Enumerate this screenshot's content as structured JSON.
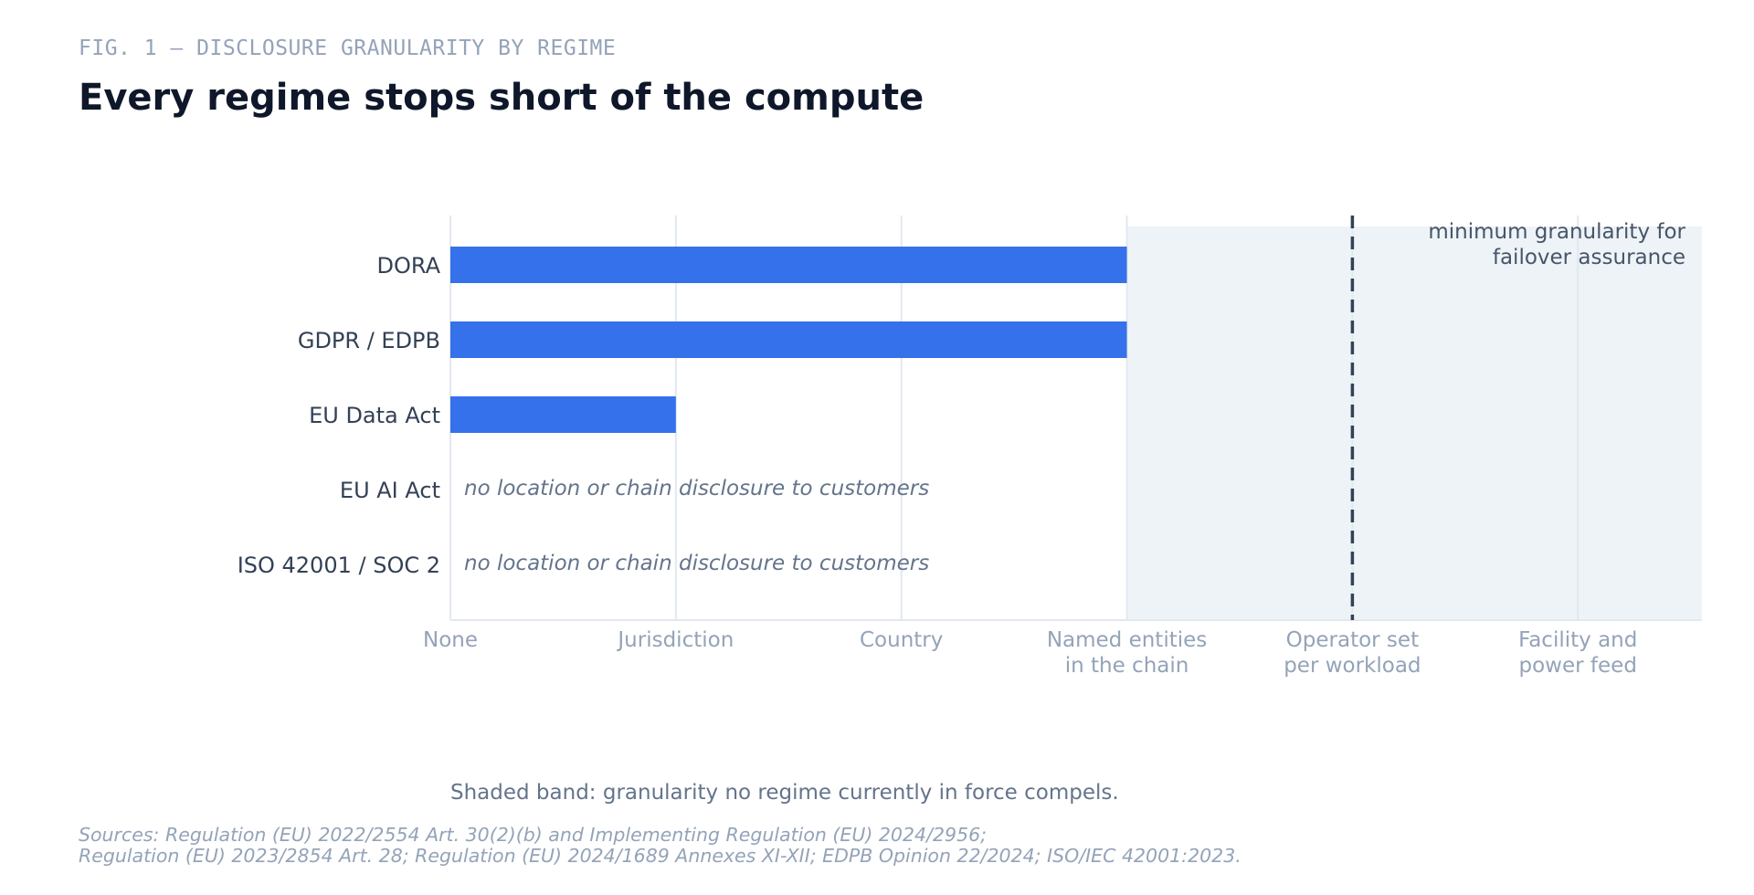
{
  "figure_label": "FIG. 1 — DISCLOSURE GRANULARITY BY REGIME",
  "chart_data": {
    "type": "bar",
    "orientation": "horizontal",
    "title": "Every regime stops short of the compute",
    "x_levels": [
      [
        "None"
      ],
      [
        "Jurisdiction"
      ],
      [
        "Country"
      ],
      [
        "Named entities",
        "in the chain"
      ],
      [
        "Operator set",
        "per workload"
      ],
      [
        "Facility and",
        "power feed"
      ]
    ],
    "xlim": [
      0,
      5.55
    ],
    "categories": [
      "DORA",
      "GDPR / EDPB",
      "EU Data Act",
      "EU AI Act",
      "ISO 42001 / SOC 2"
    ],
    "values": [
      3,
      3,
      1,
      0,
      0
    ],
    "bar_notes": [
      "",
      "",
      "",
      "no location or chain disclosure to customers",
      "no location or chain disclosure to customers"
    ],
    "shaded_band": [
      3,
      5.55
    ],
    "threshold": {
      "value": 4,
      "label_lines": [
        "minimum granularity for",
        "failover assurance"
      ]
    },
    "grid": true,
    "colors": {
      "bar": "#3571ea",
      "band": "#eef3f7",
      "grid": "#e2e8f0",
      "threshold": "#334155",
      "category_text": "#334155",
      "tick_text": "#94a3b8",
      "note_text": "#64748b"
    }
  },
  "shading_note": "Shaded band: granularity no regime currently in force compels.",
  "sources": [
    "Sources: Regulation (EU) 2022/2554 Art. 30(2)(b) and Implementing Regulation (EU) 2024/2956;",
    "Regulation (EU) 2023/2854 Art. 28; Regulation (EU) 2024/1689 Annexes XI-XII; EDPB Opinion 22/2024; ISO/IEC 42001:2023."
  ]
}
